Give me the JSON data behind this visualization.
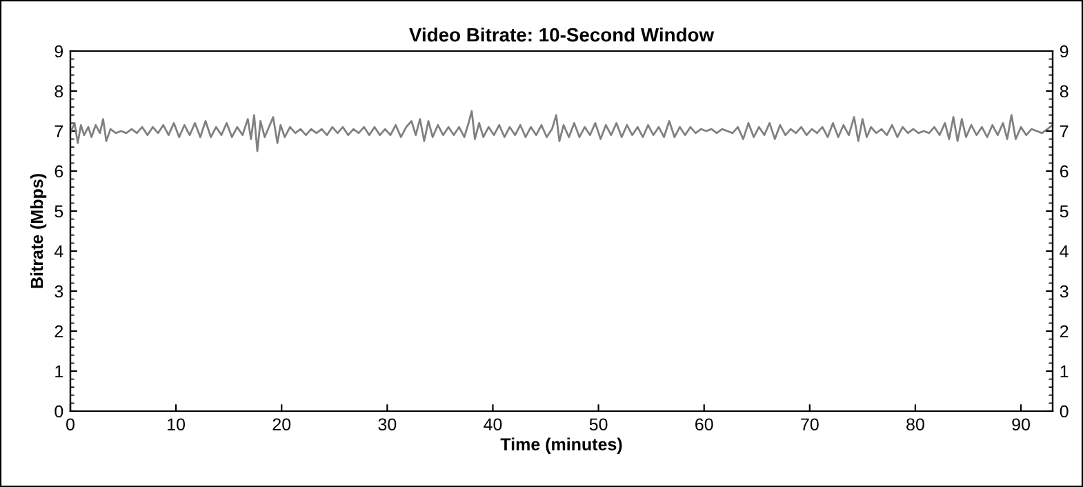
{
  "chart_data": {
    "type": "line",
    "title": "Video Bitrate: 10-Second Window",
    "xlabel": "Time (minutes)",
    "ylabel": "Bitrate (Mbps)",
    "xlim": [
      0,
      93
    ],
    "xticks": [
      0,
      10,
      20,
      30,
      40,
      50,
      60,
      70,
      80,
      90
    ],
    "ylim": [
      0,
      9
    ],
    "yticks": [
      0,
      1,
      2,
      3,
      4,
      5,
      6,
      7,
      8,
      9
    ],
    "y2lim": [
      0,
      9
    ],
    "y2ticks": [
      0,
      1,
      2,
      3,
      4,
      5,
      6,
      7,
      8,
      9
    ],
    "grid": false,
    "marker": "none",
    "line_style": "solid",
    "series": [
      {
        "color": "#808080",
        "x": [
          0,
          0.4,
          0.7,
          1.0,
          1.3,
          1.7,
          2.0,
          2.4,
          2.8,
          3.1,
          3.4,
          3.8,
          4.3,
          4.8,
          5.3,
          5.8,
          6.3,
          6.8,
          7.3,
          7.8,
          8.3,
          8.8,
          9.3,
          9.8,
          10.3,
          10.8,
          11.3,
          11.8,
          12.3,
          12.8,
          13.3,
          13.8,
          14.3,
          14.8,
          15.3,
          15.8,
          16.3,
          16.8,
          17.1,
          17.4,
          17.7,
          18.0,
          18.4,
          18.8,
          19.2,
          19.6,
          19.9,
          20.3,
          20.8,
          21.3,
          21.8,
          22.3,
          22.8,
          23.3,
          23.8,
          24.3,
          24.8,
          25.3,
          25.8,
          26.3,
          26.8,
          27.3,
          27.8,
          28.3,
          28.8,
          29.3,
          29.8,
          30.3,
          30.8,
          31.3,
          31.8,
          32.3,
          32.7,
          33.1,
          33.5,
          33.9,
          34.3,
          34.8,
          35.3,
          35.8,
          36.3,
          36.8,
          37.3,
          37.7,
          38.0,
          38.3,
          38.7,
          39.1,
          39.6,
          40.1,
          40.6,
          41.1,
          41.6,
          42.1,
          42.6,
          43.1,
          43.6,
          44.1,
          44.6,
          45.1,
          45.6,
          46.0,
          46.3,
          46.7,
          47.2,
          47.7,
          48.2,
          48.7,
          49.2,
          49.7,
          50.2,
          50.7,
          51.2,
          51.7,
          52.2,
          52.7,
          53.2,
          53.7,
          54.2,
          54.7,
          55.2,
          55.7,
          56.2,
          56.7,
          57.2,
          57.7,
          58.2,
          58.7,
          59.2,
          59.7,
          60.2,
          60.7,
          61.2,
          61.7,
          62.2,
          62.7,
          63.2,
          63.7,
          64.2,
          64.7,
          65.2,
          65.7,
          66.2,
          66.7,
          67.2,
          67.7,
          68.2,
          68.7,
          69.2,
          69.7,
          70.2,
          70.7,
          71.2,
          71.7,
          72.2,
          72.7,
          73.2,
          73.7,
          74.2,
          74.6,
          75.0,
          75.4,
          75.8,
          76.3,
          76.8,
          77.3,
          77.8,
          78.3,
          78.8,
          79.3,
          79.8,
          80.3,
          80.8,
          81.3,
          81.8,
          82.3,
          82.8,
          83.2,
          83.6,
          84.0,
          84.4,
          84.8,
          85.3,
          85.8,
          86.3,
          86.8,
          87.3,
          87.8,
          88.3,
          88.7,
          89.1,
          89.5,
          90.0,
          90.5,
          91.0,
          91.5,
          92.0,
          92.5,
          93.0
        ],
        "values": [
          6.95,
          7.2,
          6.7,
          7.15,
          6.9,
          7.1,
          6.85,
          7.15,
          6.95,
          7.3,
          6.75,
          7.05,
          6.95,
          7.0,
          6.95,
          7.05,
          6.95,
          7.1,
          6.9,
          7.1,
          6.95,
          7.15,
          6.9,
          7.2,
          6.85,
          7.15,
          6.9,
          7.2,
          6.85,
          7.25,
          6.85,
          7.1,
          6.9,
          7.2,
          6.85,
          7.1,
          6.9,
          7.3,
          6.8,
          7.4,
          6.5,
          7.25,
          6.85,
          7.1,
          7.35,
          6.7,
          7.15,
          6.85,
          7.1,
          6.95,
          7.05,
          6.9,
          7.05,
          6.95,
          7.05,
          6.9,
          7.1,
          6.95,
          7.1,
          6.9,
          7.05,
          6.95,
          7.1,
          6.9,
          7.1,
          6.9,
          7.05,
          6.9,
          7.15,
          6.85,
          7.1,
          7.25,
          6.9,
          7.3,
          6.75,
          7.25,
          6.85,
          7.15,
          6.9,
          7.1,
          6.9,
          7.1,
          6.85,
          7.2,
          7.5,
          6.8,
          7.2,
          6.85,
          7.1,
          6.9,
          7.15,
          6.85,
          7.1,
          6.9,
          7.15,
          6.85,
          7.1,
          6.9,
          7.15,
          6.85,
          7.05,
          7.4,
          6.75,
          7.15,
          6.85,
          7.2,
          6.85,
          7.1,
          6.9,
          7.2,
          6.8,
          7.15,
          6.9,
          7.2,
          6.85,
          7.15,
          6.9,
          7.1,
          6.85,
          7.15,
          6.9,
          7.1,
          6.85,
          7.25,
          6.85,
          7.1,
          6.9,
          7.1,
          6.95,
          7.05,
          7.0,
          7.05,
          6.95,
          7.05,
          7.0,
          6.95,
          7.1,
          6.8,
          7.2,
          6.85,
          7.1,
          6.9,
          7.2,
          6.8,
          7.15,
          6.9,
          7.05,
          6.95,
          7.1,
          6.9,
          7.05,
          6.95,
          7.1,
          6.85,
          7.2,
          6.85,
          7.15,
          6.9,
          7.35,
          6.75,
          7.3,
          6.85,
          7.1,
          6.95,
          7.05,
          6.9,
          7.15,
          6.85,
          7.1,
          6.95,
          7.05,
          6.95,
          7.0,
          6.95,
          7.1,
          6.9,
          7.2,
          6.8,
          7.35,
          6.75,
          7.3,
          6.85,
          7.15,
          6.9,
          7.1,
          6.85,
          7.15,
          6.9,
          7.2,
          6.8,
          7.4,
          6.8,
          7.1,
          6.9,
          7.05,
          7.0,
          6.95,
          7.05,
          7.15
        ]
      }
    ]
  }
}
